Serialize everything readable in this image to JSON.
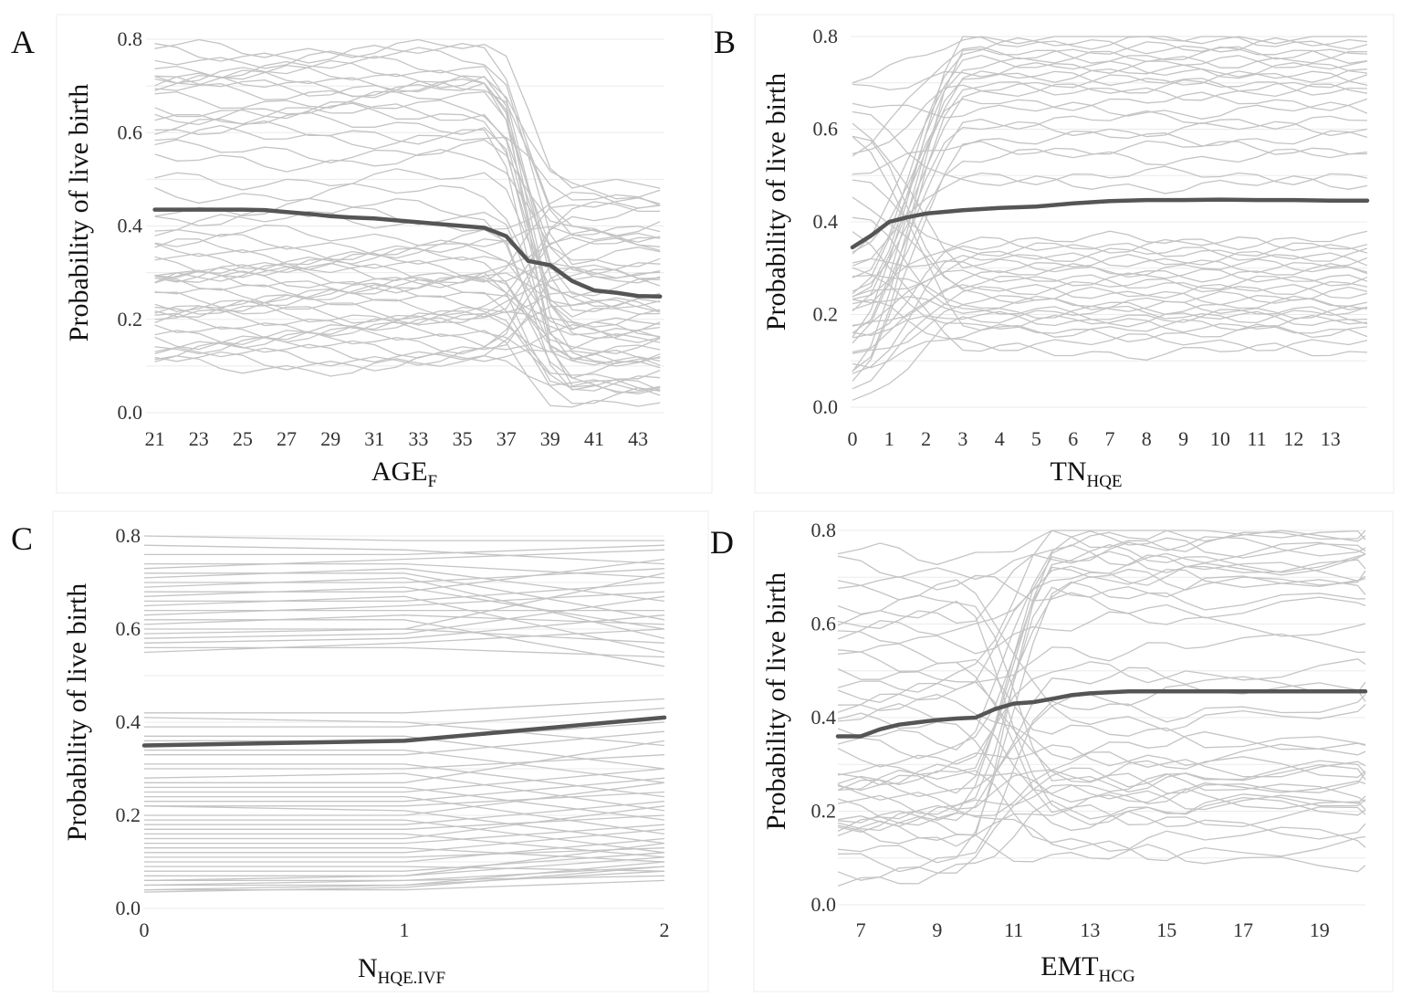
{
  "chart_data": [
    {
      "panel": "A",
      "type": "line",
      "ylabel": "Probability of live birth",
      "xlabel_main": "AGE",
      "xlabel_sub": "F",
      "xlim": [
        20.6,
        44.2
      ],
      "ylim": [
        0.0,
        0.8
      ],
      "x_ticks": [
        21,
        23,
        25,
        27,
        29,
        31,
        33,
        35,
        37,
        39,
        41,
        43
      ],
      "y_ticks": [
        0.0,
        0.2,
        0.4,
        0.6,
        0.8
      ],
      "y_tick_labels": [
        "0.0",
        "0.2",
        "0.4",
        "0.6",
        "0.8"
      ],
      "grid": "horizontal",
      "series": [
        {
          "role": "average",
          "color": "#555555",
          "x": [
            21,
            22,
            23,
            24,
            25,
            26,
            27,
            28,
            29,
            30,
            31,
            32,
            33,
            34,
            35,
            36,
            37,
            38,
            39,
            40,
            41,
            42,
            43,
            44
          ],
          "y": [
            0.435,
            0.435,
            0.435,
            0.435,
            0.435,
            0.434,
            0.43,
            0.426,
            0.421,
            0.418,
            0.416,
            0.412,
            0.408,
            0.404,
            0.4,
            0.396,
            0.378,
            0.325,
            0.316,
            0.282,
            0.262,
            0.257,
            0.25,
            0.249
          ]
        }
      ],
      "individual": {
        "color": "#c4c4c4",
        "x": [
          21,
          22,
          23,
          24,
          25,
          26,
          27,
          28,
          29,
          30,
          31,
          32,
          33,
          34,
          35,
          36,
          37,
          38,
          39,
          40,
          41,
          42,
          43,
          44
        ],
        "base": [
          0.78,
          0.77,
          0.76,
          0.74,
          0.73,
          0.72,
          0.71,
          0.7,
          0.7,
          0.69,
          0.67,
          0.65,
          0.64,
          0.64,
          0.62,
          0.6,
          0.59,
          0.56,
          0.54,
          0.5,
          0.47,
          0.44,
          0.42,
          0.41,
          0.38,
          0.36,
          0.35,
          0.34,
          0.33,
          0.32,
          0.31,
          0.3,
          0.3,
          0.29,
          0.28,
          0.28,
          0.27,
          0.26,
          0.25,
          0.24,
          0.23,
          0.22,
          0.21,
          0.21,
          0.2,
          0.19,
          0.18,
          0.17,
          0.16,
          0.15,
          0.14,
          0.13,
          0.12,
          0.11,
          0.1
        ],
        "end": [
          0.5,
          0.48,
          0.46,
          0.45,
          0.44,
          0.43,
          0.42,
          0.4,
          0.4,
          0.39,
          0.38,
          0.37,
          0.36,
          0.35,
          0.34,
          0.33,
          0.32,
          0.31,
          0.3,
          0.29,
          0.29,
          0.28,
          0.27,
          0.26,
          0.25,
          0.24,
          0.24,
          0.23,
          0.22,
          0.21,
          0.2,
          0.2,
          0.19,
          0.18,
          0.17,
          0.17,
          0.16,
          0.15,
          0.14,
          0.14,
          0.13,
          0.12,
          0.11,
          0.11,
          0.1,
          0.09,
          0.08,
          0.07,
          0.07,
          0.06,
          0.05,
          0.05,
          0.04,
          0.03,
          0.02
        ],
        "t0": 36.2,
        "t1": 39.8,
        "wiggle": 0.025
      }
    },
    {
      "panel": "B",
      "type": "line",
      "ylabel": "Probability of live birth",
      "xlabel_main": "TN",
      "xlabel_sub": "HQE",
      "xlim": [
        -0.05,
        14.0
      ],
      "ylim": [
        0.0,
        0.8
      ],
      "x_ticks": [
        0,
        1,
        2,
        3,
        4,
        5,
        6,
        7,
        8,
        9,
        10,
        11,
        12,
        13
      ],
      "y_ticks": [
        0.0,
        0.2,
        0.4,
        0.6,
        0.8
      ],
      "y_tick_labels": [
        "0.0",
        "0.2",
        "0.4",
        "0.6",
        "0.8"
      ],
      "grid": "horizontal",
      "series": [
        {
          "role": "average",
          "color": "#555555",
          "x": [
            0,
            0.5,
            1,
            1.5,
            2,
            3,
            4,
            5,
            6,
            7,
            8,
            9,
            10,
            11,
            12,
            13,
            14
          ],
          "y": [
            0.345,
            0.37,
            0.4,
            0.41,
            0.418,
            0.425,
            0.43,
            0.433,
            0.44,
            0.445,
            0.447,
            0.447,
            0.448,
            0.447,
            0.447,
            0.446,
            0.446
          ]
        }
      ],
      "individual": {
        "color": "#c4c4c4",
        "x": [
          0,
          0.5,
          1,
          1.5,
          2,
          2.5,
          3,
          3.5,
          4,
          4.5,
          5,
          5.5,
          6,
          6.5,
          7,
          7.5,
          8,
          8.5,
          9,
          9.5,
          10,
          10.5,
          11,
          11.5,
          12,
          12.5,
          13,
          13.5,
          14
        ],
        "base": [
          0.7,
          0.68,
          0.66,
          0.64,
          0.62,
          0.6,
          0.58,
          0.55,
          0.53,
          0.5,
          0.48,
          0.45,
          0.42,
          0.38,
          0.35,
          0.33,
          0.31,
          0.3,
          0.29,
          0.28,
          0.27,
          0.26,
          0.25,
          0.25,
          0.24,
          0.23,
          0.22,
          0.22,
          0.21,
          0.2,
          0.19,
          0.18,
          0.17,
          0.16,
          0.15,
          0.14,
          0.13,
          0.12,
          0.11,
          0.1,
          0.09,
          0.08,
          0.07,
          0.06,
          0.04,
          0.0
        ],
        "end": [
          0.8,
          0.79,
          0.78,
          0.77,
          0.76,
          0.75,
          0.74,
          0.73,
          0.72,
          0.71,
          0.7,
          0.69,
          0.68,
          0.66,
          0.64,
          0.62,
          0.6,
          0.58,
          0.56,
          0.54,
          0.5,
          0.48,
          0.36,
          0.35,
          0.34,
          0.33,
          0.32,
          0.31,
          0.3,
          0.29,
          0.28,
          0.27,
          0.26,
          0.25,
          0.24,
          0.23,
          0.22,
          0.21,
          0.2,
          0.2,
          0.19,
          0.18,
          0.17,
          0.16,
          0.14,
          0.12
        ],
        "t0": 0.0,
        "t1": 3.2,
        "wiggle": 0.02
      }
    },
    {
      "panel": "C",
      "type": "line",
      "ylabel": "Probability of live birth",
      "xlabel_main": "N",
      "xlabel_sub": "HQE.IVF",
      "xlim": [
        0.0,
        2.0
      ],
      "ylim": [
        0.0,
        0.8
      ],
      "x_ticks": [
        0,
        1,
        2
      ],
      "y_ticks": [
        0.0,
        0.2,
        0.4,
        0.6,
        0.8
      ],
      "y_tick_labels": [
        "0.0",
        "0.2",
        "0.4",
        "0.6",
        "0.8"
      ],
      "grid": "horizontal",
      "series": [
        {
          "role": "average",
          "color": "#555555",
          "x": [
            0,
            1,
            2
          ],
          "y": [
            0.35,
            0.36,
            0.41
          ]
        }
      ],
      "individual": {
        "color": "#c4c4c4",
        "x": [
          0,
          1,
          2
        ],
        "lines": [
          [
            0.8,
            0.79,
            0.79
          ],
          [
            0.78,
            0.77,
            0.74
          ],
          [
            0.76,
            0.76,
            0.78
          ],
          [
            0.74,
            0.74,
            0.71
          ],
          [
            0.73,
            0.75,
            0.77
          ],
          [
            0.72,
            0.72,
            0.62
          ],
          [
            0.71,
            0.73,
            0.66
          ],
          [
            0.7,
            0.7,
            0.73
          ],
          [
            0.69,
            0.71,
            0.58
          ],
          [
            0.68,
            0.68,
            0.75
          ],
          [
            0.67,
            0.69,
            0.6
          ],
          [
            0.66,
            0.66,
            0.7
          ],
          [
            0.65,
            0.67,
            0.55
          ],
          [
            0.64,
            0.64,
            0.64
          ],
          [
            0.63,
            0.65,
            0.68
          ],
          [
            0.62,
            0.62,
            0.52
          ],
          [
            0.61,
            0.63,
            0.61
          ],
          [
            0.6,
            0.6,
            0.72
          ],
          [
            0.59,
            0.6,
            0.57
          ],
          [
            0.58,
            0.59,
            0.67
          ],
          [
            0.57,
            0.58,
            0.63
          ],
          [
            0.56,
            0.56,
            0.54
          ],
          [
            0.55,
            0.57,
            0.6
          ],
          [
            0.42,
            0.42,
            0.45
          ],
          [
            0.41,
            0.4,
            0.35
          ],
          [
            0.39,
            0.39,
            0.43
          ],
          [
            0.37,
            0.37,
            0.3
          ],
          [
            0.36,
            0.36,
            0.4
          ],
          [
            0.34,
            0.34,
            0.27
          ],
          [
            0.33,
            0.33,
            0.38
          ],
          [
            0.31,
            0.31,
            0.24
          ],
          [
            0.3,
            0.3,
            0.33
          ],
          [
            0.28,
            0.29,
            0.21
          ],
          [
            0.27,
            0.27,
            0.36
          ],
          [
            0.26,
            0.26,
            0.19
          ],
          [
            0.25,
            0.25,
            0.3
          ],
          [
            0.24,
            0.24,
            0.16
          ],
          [
            0.23,
            0.23,
            0.28
          ],
          [
            0.22,
            0.22,
            0.25
          ],
          [
            0.22,
            0.21,
            0.14
          ],
          [
            0.2,
            0.2,
            0.27
          ],
          [
            0.19,
            0.19,
            0.12
          ],
          [
            0.18,
            0.18,
            0.23
          ],
          [
            0.17,
            0.17,
            0.2
          ],
          [
            0.16,
            0.16,
            0.11
          ],
          [
            0.15,
            0.15,
            0.22
          ],
          [
            0.14,
            0.14,
            0.18
          ],
          [
            0.13,
            0.13,
            0.1
          ],
          [
            0.12,
            0.12,
            0.17
          ],
          [
            0.11,
            0.11,
            0.13
          ],
          [
            0.1,
            0.1,
            0.15
          ],
          [
            0.09,
            0.09,
            0.08
          ],
          [
            0.08,
            0.08,
            0.12
          ],
          [
            0.07,
            0.07,
            0.14
          ],
          [
            0.06,
            0.06,
            0.09
          ],
          [
            0.06,
            0.07,
            0.11
          ],
          [
            0.05,
            0.06,
            0.07
          ],
          [
            0.05,
            0.05,
            0.1
          ],
          [
            0.04,
            0.05,
            0.08
          ],
          [
            0.04,
            0.04,
            0.06
          ],
          [
            0.035,
            0.045,
            0.09
          ]
        ]
      }
    },
    {
      "panel": "D",
      "type": "line",
      "ylabel": "Probability of live birth",
      "xlabel_main": "EMT",
      "xlabel_sub": "HCG",
      "xlim": [
        6.4,
        20.2
      ],
      "ylim": [
        0.0,
        0.8
      ],
      "x_ticks": [
        7,
        9,
        11,
        13,
        15,
        17,
        19
      ],
      "y_ticks": [
        0.0,
        0.2,
        0.4,
        0.6,
        0.8
      ],
      "y_tick_labels": [
        "0.0",
        "0.2",
        "0.4",
        "0.6",
        "0.8"
      ],
      "grid": "horizontal",
      "series": [
        {
          "role": "average",
          "color": "#555555",
          "x": [
            6.4,
            7,
            7.5,
            8,
            8.5,
            9,
            9.5,
            10,
            10.5,
            11,
            11.5,
            12,
            12.5,
            13,
            13.5,
            14,
            15,
            16,
            17,
            18,
            19,
            20,
            20.2
          ],
          "y": [
            0.36,
            0.36,
            0.375,
            0.385,
            0.39,
            0.395,
            0.398,
            0.4,
            0.418,
            0.43,
            0.433,
            0.44,
            0.448,
            0.452,
            0.454,
            0.456,
            0.456,
            0.456,
            0.456,
            0.456,
            0.456,
            0.456,
            0.456
          ]
        }
      ],
      "individual": {
        "color": "#c4c4c4",
        "x": [
          6.4,
          7,
          7.5,
          8,
          8.5,
          9,
          9.5,
          10,
          10.5,
          11,
          11.5,
          12,
          12.5,
          13,
          13.5,
          14,
          14.5,
          15,
          15.5,
          16,
          17,
          18,
          19,
          20,
          20.2
        ],
        "base": [
          0.75,
          0.72,
          0.7,
          0.68,
          0.65,
          0.62,
          0.6,
          0.58,
          0.56,
          0.54,
          0.52,
          0.5,
          0.48,
          0.46,
          0.44,
          0.42,
          0.4,
          0.38,
          0.36,
          0.34,
          0.32,
          0.3,
          0.28,
          0.27,
          0.26,
          0.25,
          0.24,
          0.23,
          0.22,
          0.21,
          0.2,
          0.19,
          0.18,
          0.17,
          0.16,
          0.15,
          0.14,
          0.12,
          0.1,
          0.08,
          0.06
        ],
        "end": [
          0.8,
          0.79,
          0.78,
          0.77,
          0.76,
          0.75,
          0.74,
          0.73,
          0.72,
          0.71,
          0.7,
          0.69,
          0.68,
          0.66,
          0.64,
          0.6,
          0.55,
          0.5,
          0.48,
          0.45,
          0.42,
          0.4,
          0.36,
          0.34,
          0.32,
          0.3,
          0.29,
          0.28,
          0.27,
          0.26,
          0.25,
          0.24,
          0.23,
          0.22,
          0.21,
          0.2,
          0.19,
          0.17,
          0.14,
          0.12,
          0.1
        ],
        "t0": 9.6,
        "t1": 12.2,
        "wiggle": 0.03
      }
    }
  ]
}
